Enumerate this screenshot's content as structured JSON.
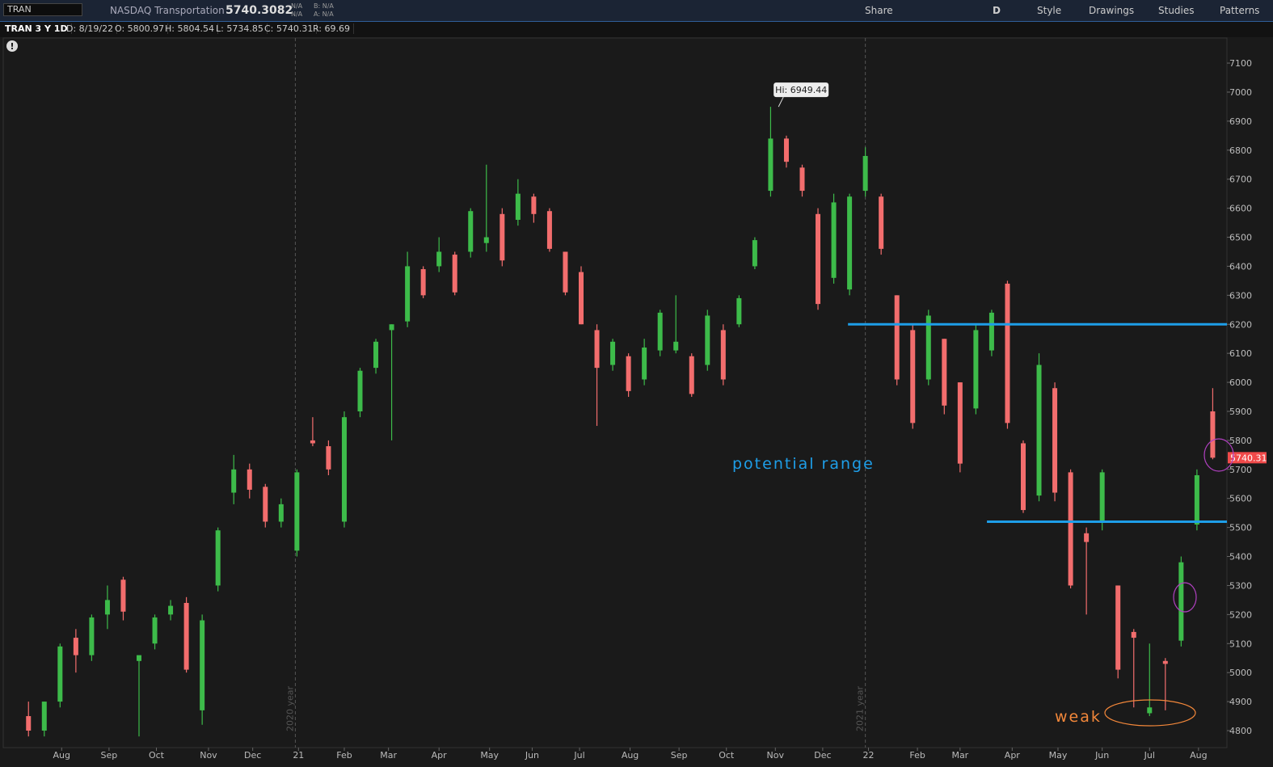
{
  "header": {
    "symbol": "TRAN",
    "description": "NASDAQ Transportation",
    "price": "5740.3082",
    "na1": "N/A",
    "na2": "N/A",
    "bid": "B: N/A",
    "ask": "A: N/A",
    "buttons": [
      "Share",
      "D",
      "Style",
      "Drawings",
      "Studies",
      "Patterns"
    ]
  },
  "info": [
    "TRAN 3 Y 1D",
    "D: 8/19/22",
    "O: 5800.97",
    "H: 5804.54",
    "L: 5734.85",
    "C: 5740.31",
    "R: 69.69"
  ],
  "chart_data": {
    "type": "candlestick",
    "open": [
      4850,
      4800,
      4900,
      5120,
      5060,
      5200,
      5320,
      5040,
      5100,
      5200,
      5240,
      4870,
      5300,
      5620,
      5700,
      5640,
      5520,
      5420,
      5800,
      5780,
      5520,
      5900,
      6050,
      6180,
      6210,
      6390,
      6400,
      6440,
      6450,
      6480,
      6580,
      6560,
      6640,
      6590,
      6450,
      6380,
      6180,
      6060,
      6090,
      6010,
      6110,
      6110,
      6090,
      6060,
      6180,
      6200,
      6400,
      6660,
      6840,
      6740,
      6580,
      6360,
      6320,
      6660,
      6640,
      6300,
      6180,
      6010,
      6150,
      6000,
      5910,
      6110,
      6340,
      5790,
      5610,
      5980,
      5690,
      5480,
      5520,
      5300,
      5140,
      4860,
      5040,
      5110,
      5510,
      5900
    ],
    "high": [
      4900,
      4900,
      5100,
      5150,
      5200,
      5300,
      5330,
      5050,
      5200,
      5250,
      5260,
      5200,
      5500,
      5750,
      5720,
      5650,
      5600,
      5700,
      5880,
      5800,
      5900,
      6050,
      6150,
      6200,
      6450,
      6400,
      6500,
      6450,
      6600,
      6750,
      6600,
      6700,
      6650,
      6600,
      6450,
      6400,
      6200,
      6150,
      6100,
      6150,
      6250,
      6300,
      6100,
      6250,
      6200,
      6300,
      6500,
      6949.44,
      6850,
      6750,
      6600,
      6650,
      6650,
      6810,
      6650,
      6300,
      6200,
      6250,
      6150,
      6000,
      6200,
      6250,
      6350,
      5800,
      6100,
      6000,
      5700,
      5500,
      5700,
      5300,
      5150,
      5100,
      5050,
      5400,
      5700,
      5980
    ],
    "low": [
      4780,
      4780,
      4880,
      5000,
      5040,
      5150,
      5180,
      4780,
      5080,
      5180,
      5000,
      4820,
      5280,
      5580,
      5600,
      5500,
      5500,
      5400,
      5780,
      5680,
      5500,
      5880,
      6030,
      5800,
      6190,
      6290,
      6380,
      6300,
      6430,
      6450,
      6400,
      6540,
      6550,
      6450,
      6300,
      6200,
      5850,
      6040,
      5950,
      5990,
      6090,
      6100,
      5950,
      6040,
      5990,
      6190,
      6390,
      6640,
      6740,
      6640,
      6250,
      6340,
      6300,
      6640,
      6440,
      5990,
      5840,
      5990,
      5890,
      5690,
      5890,
      6090,
      5840,
      5550,
      5590,
      5590,
      5290,
      5200,
      5490,
      4980,
      4880,
      4850,
      4870,
      5090,
      5490,
      5734.85
    ],
    "close": [
      4800,
      4900,
      5090,
      5060,
      5190,
      5250,
      5210,
      5060,
      5190,
      5230,
      5010,
      5180,
      5490,
      5700,
      5630,
      5520,
      5580,
      5690,
      5790,
      5700,
      5880,
      6040,
      6140,
      6200,
      6400,
      6300,
      6450,
      6310,
      6590,
      6500,
      6420,
      6650,
      6580,
      6460,
      6310,
      6200,
      6050,
      6140,
      5970,
      6120,
      6240,
      6140,
      5960,
      6230,
      6010,
      6290,
      6490,
      6840,
      6760,
      6660,
      6270,
      6620,
      6640,
      6780,
      6460,
      6010,
      5860,
      6230,
      5920,
      5720,
      6180,
      6240,
      5860,
      5560,
      6060,
      5620,
      5300,
      5450,
      5690,
      5010,
      5120,
      4880,
      5030,
      5380,
      5680,
      5740.31
    ],
    "xlim": [
      -1.6,
      75.9
    ],
    "ylim": [
      4741.5,
      7186.5
    ],
    "xticks": [
      {
        "value": 2.1,
        "label": "Aug"
      },
      {
        "value": 5.1,
        "label": "Sep"
      },
      {
        "value": 8.1,
        "label": "Oct"
      },
      {
        "value": 11.4,
        "label": "Nov"
      },
      {
        "value": 14.2,
        "label": "Dec"
      },
      {
        "value": 17.1,
        "label": "21"
      },
      {
        "value": 20.0,
        "label": "Feb"
      },
      {
        "value": 22.8,
        "label": "Mar"
      },
      {
        "value": 26.0,
        "label": "Apr"
      },
      {
        "value": 29.2,
        "label": "May"
      },
      {
        "value": 31.9,
        "label": "Jun"
      },
      {
        "value": 34.9,
        "label": "Jul"
      },
      {
        "value": 38.1,
        "label": "Aug"
      },
      {
        "value": 41.2,
        "label": "Sep"
      },
      {
        "value": 44.2,
        "label": "Oct"
      },
      {
        "value": 47.3,
        "label": "Nov"
      },
      {
        "value": 50.3,
        "label": "Dec"
      },
      {
        "value": 53.2,
        "label": "22"
      },
      {
        "value": 56.3,
        "label": "Feb"
      },
      {
        "value": 59.0,
        "label": "Mar"
      },
      {
        "value": 62.3,
        "label": "Apr"
      },
      {
        "value": 65.2,
        "label": "May"
      },
      {
        "value": 68.0,
        "label": "Jun"
      },
      {
        "value": 71.0,
        "label": "Jul"
      },
      {
        "value": 74.1,
        "label": "Aug"
      }
    ],
    "yticks": [
      4800,
      4900,
      5000,
      5100,
      5200,
      5300,
      5400,
      5500,
      5600,
      5700,
      5800,
      5900,
      6000,
      6100,
      6200,
      6300,
      6400,
      6500,
      6600,
      6700,
      6800,
      6900,
      7000,
      7100
    ],
    "separators": [
      {
        "value": 16.9,
        "label": "2020 year"
      },
      {
        "value": 53.0,
        "label": "2021 year"
      }
    ],
    "levels": [
      {
        "value": 6200,
        "from": 51.9
      },
      {
        "value": 5520,
        "from": 60.7
      }
    ],
    "high_marker": {
      "value": 6949.44,
      "index": 47.5,
      "label": "Hi: 6949.44"
    },
    "last_price": 5740.31,
    "annotations": [
      "potential range",
      "weak"
    ],
    "up_color": "#3dbb4a",
    "down_color": "#f26d6d",
    "level_color": "#1e9ee8"
  }
}
